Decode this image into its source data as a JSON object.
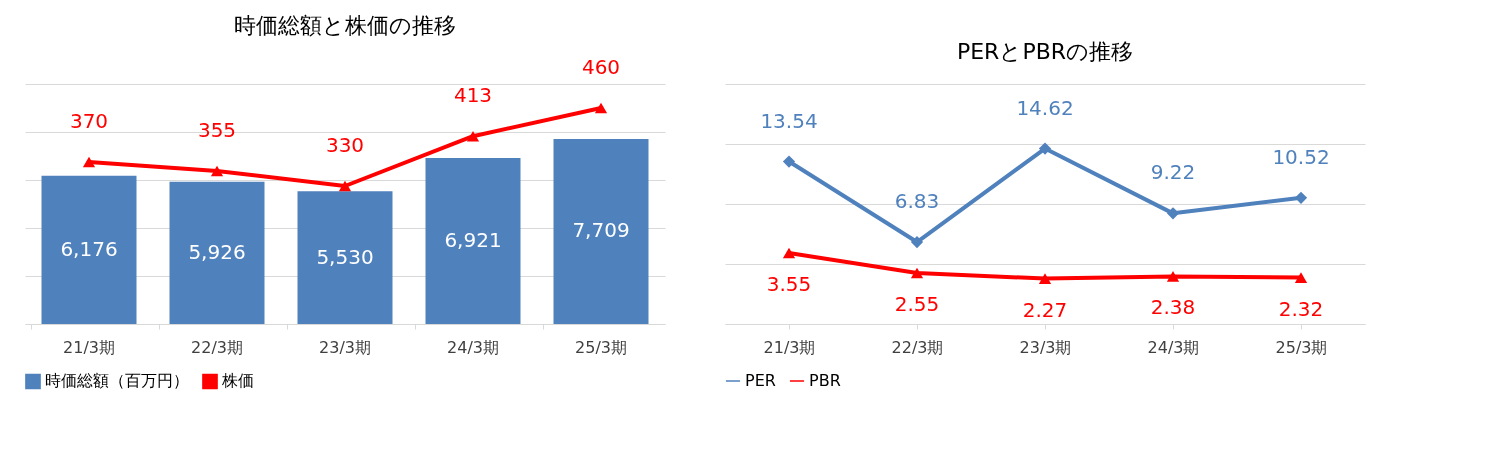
{
  "chart_data": [
    {
      "type": "bar",
      "title": "時価総額と株価の推移",
      "categories": [
        "21/3期",
        "22/3期",
        "23/3期",
        "24/3期",
        "25/3期"
      ],
      "series": [
        {
          "name": "時価総額（百万円）",
          "color": "#4f81bd",
          "values": [
            6176,
            5926,
            5530,
            6921,
            7709
          ],
          "value_labels": [
            "6,176",
            "5,926",
            "5,530",
            "6,921",
            "7,709"
          ]
        },
        {
          "name": "株価",
          "type": "line",
          "axis": "y2",
          "color": "#ff0000",
          "marker": "triangle",
          "values": [
            370,
            355,
            330,
            413,
            460
          ],
          "value_labels": [
            "370",
            "355",
            "330",
            "413",
            "460"
          ]
        }
      ],
      "ylim": [
        0,
        10000
      ],
      "yticks": [
        {
          "value": 0,
          "label": null
        },
        {
          "value": 2000,
          "label": null
        },
        {
          "value": 4000,
          "label": null
        },
        {
          "value": 6000,
          "label": null
        },
        {
          "value": 8000,
          "label": null
        },
        {
          "value": 10000,
          "label": null
        }
      ],
      "y2lim": [
        100,
        500
      ],
      "tick_labels": "x",
      "grid": "y",
      "legend": "bottom"
    },
    {
      "type": "line",
      "title": "PERとPBRの推移",
      "categories": [
        "21/3期",
        "22/3期",
        "23/3期",
        "24/3期",
        "25/3期"
      ],
      "series": [
        {
          "name": "PER",
          "color": "#4f81bd",
          "marker": "diamond",
          "values": [
            13.54,
            6.83,
            14.62,
            9.22,
            10.52
          ],
          "value_labels": [
            "13.54",
            "6.83",
            "14.62",
            "9.22",
            "10.52"
          ]
        },
        {
          "name": "PBR",
          "axis": "y2",
          "color": "#ff0000",
          "marker": "triangle",
          "values": [
            3.55,
            2.55,
            2.27,
            2.38,
            2.32
          ],
          "value_labels": [
            "3.55",
            "2.55",
            "2.27",
            "2.38",
            "2.32"
          ]
        }
      ],
      "ylim": [
        0,
        20
      ],
      "yticks": [
        {
          "value": 0,
          "label": null
        },
        {
          "value": 5,
          "label": null
        },
        {
          "value": 10,
          "label": null
        },
        {
          "value": 15,
          "label": null
        },
        {
          "value": 20,
          "label": null
        }
      ],
      "y2lim": [
        0,
        12
      ],
      "tick_labels": "x",
      "grid": "y",
      "legend": "bottom"
    }
  ]
}
